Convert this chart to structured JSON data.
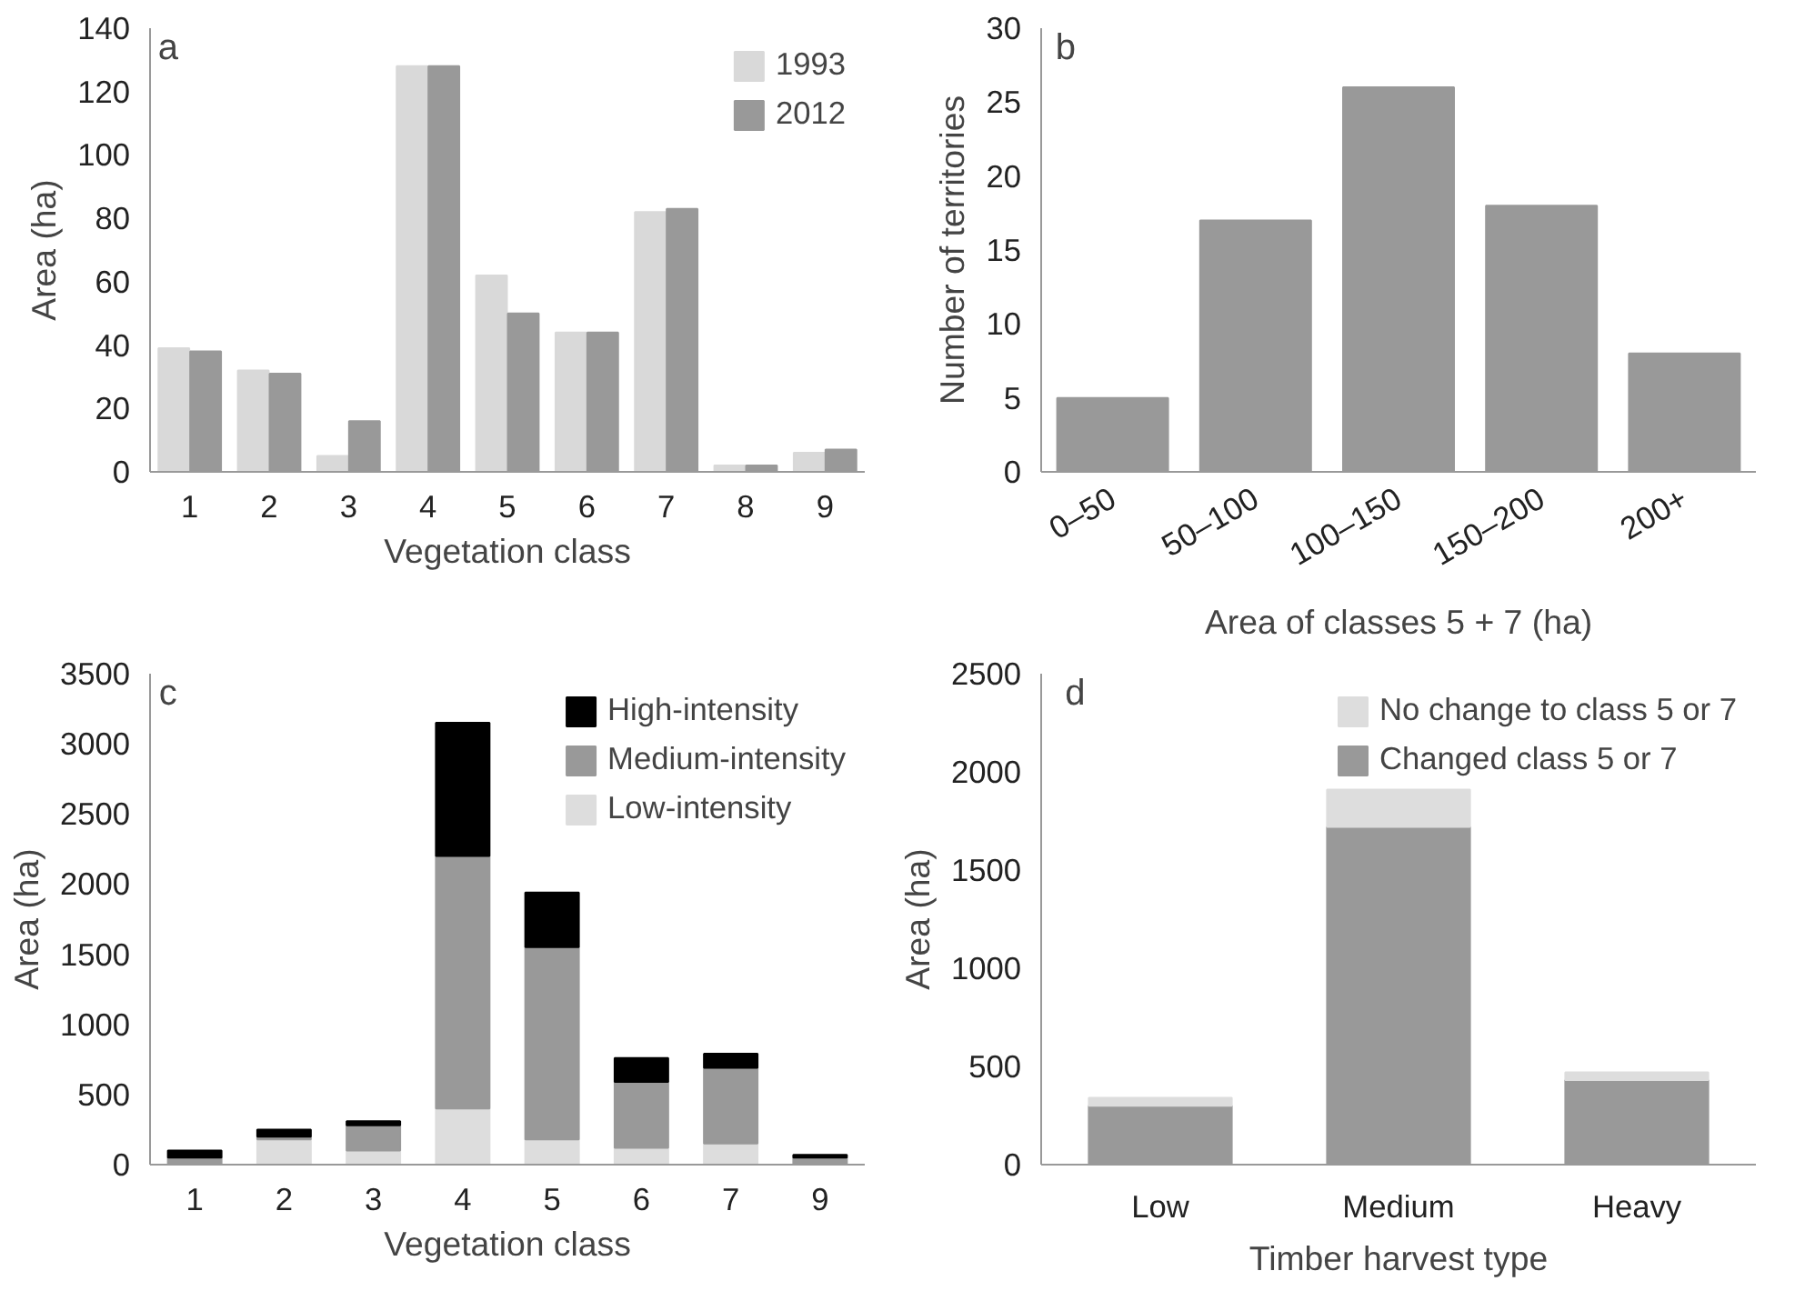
{
  "chart_data": [
    {
      "type": "bar",
      "title": "a",
      "xlabel": "Vegetation class",
      "ylabel": "Area (ha)",
      "categories": [
        "1",
        "2",
        "3",
        "4",
        "5",
        "6",
        "7",
        "8",
        "9"
      ],
      "ylim": [
        0,
        140
      ],
      "yticks": [
        0,
        20,
        40,
        60,
        80,
        100,
        120,
        140
      ],
      "grid": false,
      "legend": "top right",
      "series": [
        {
          "name": "1993",
          "color": "#d9d9d9",
          "values": [
            39,
            32,
            5,
            128,
            62,
            44,
            82,
            2,
            6
          ]
        },
        {
          "name": "2012",
          "color": "#999999",
          "values": [
            38,
            31,
            16,
            128,
            50,
            44,
            83,
            2,
            7
          ]
        }
      ]
    },
    {
      "type": "bar",
      "title": "b",
      "xlabel": "Area of classes 5 + 7 (ha)",
      "ylabel": "Number of territories",
      "categories": [
        "0–50",
        "50–100",
        "100–150",
        "150–200",
        "200+"
      ],
      "ylim": [
        0,
        30
      ],
      "yticks": [
        0,
        5,
        10,
        15,
        20,
        25,
        30
      ],
      "grid": false,
      "series": [
        {
          "color": "#999999",
          "values": [
            5,
            17,
            26,
            18,
            8
          ]
        }
      ]
    },
    {
      "type": "bar",
      "title": "c",
      "xlabel": "Vegetation class",
      "ylabel": "Area (ha)",
      "categories": [
        "1",
        "2",
        "3",
        "4",
        "5",
        "6",
        "7",
        "9"
      ],
      "ylim": [
        0,
        3500
      ],
      "yticks": [
        0,
        500,
        1000,
        1500,
        2000,
        2500,
        3000,
        3500
      ],
      "grid": false,
      "legend": "top right",
      "stacked": true,
      "series": [
        {
          "name": "Low-intensity",
          "color": "#dddddd",
          "values": [
            null,
            180,
            100,
            400,
            180,
            120,
            150,
            null
          ]
        },
        {
          "name": "Medium-intensity",
          "color": "#999999",
          "values": [
            50,
            20,
            180,
            1800,
            1370,
            470,
            540,
            50
          ]
        },
        {
          "name": "High-intensity",
          "color": "#000000",
          "values": [
            50,
            50,
            30,
            950,
            390,
            170,
            100,
            20
          ]
        }
      ]
    },
    {
      "type": "bar",
      "title": "d",
      "xlabel": "Timber harvest type",
      "ylabel": "Area (ha)",
      "categories": [
        "Low",
        "Medium",
        "Heavy"
      ],
      "ylim": [
        0,
        2500
      ],
      "yticks": [
        0,
        500,
        1000,
        1500,
        2000,
        2500
      ],
      "grid": false,
      "legend": "top right",
      "stacked": true,
      "series": [
        {
          "name": "Changed class 5 or 7",
          "color": "#999999",
          "values": [
            300,
            1720,
            430
          ]
        },
        {
          "name": "No change to class 5 or 7",
          "color": "#dddddd",
          "values": [
            40,
            190,
            40
          ]
        }
      ]
    }
  ]
}
